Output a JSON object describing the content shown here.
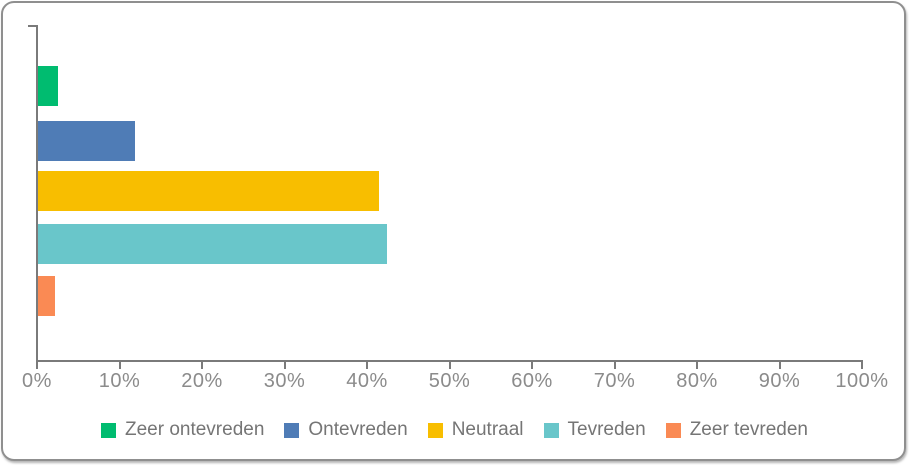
{
  "chart_data": {
    "type": "bar",
    "orientation": "horizontal",
    "title": "",
    "xlabel": "",
    "ylabel": "",
    "categories": [
      "Zeer ontevreden",
      "Ontevreden",
      "Neutraal",
      "Tevreden",
      "Zeer tevreden"
    ],
    "values": [
      2.4,
      11.8,
      41.3,
      42.3,
      2.1
    ],
    "unit": "%",
    "colors": [
      "#00bc70",
      "#4f7cb6",
      "#f8be00",
      "#69c6ca",
      "#fa8a54"
    ],
    "xlim": [
      0,
      100
    ],
    "x_tick_step": 10,
    "x_tick_labels": [
      "0%",
      "10%",
      "20%",
      "30%",
      "40%",
      "50%",
      "60%",
      "70%",
      "80%",
      "90%",
      "100%"
    ],
    "grid": false,
    "legend_position": "bottom",
    "legend": [
      {
        "label": "Zeer ontevreden",
        "color": "#00bc70"
      },
      {
        "label": "Ontevreden",
        "color": "#4f7cb6"
      },
      {
        "label": "Neutraal",
        "color": "#f8be00"
      },
      {
        "label": "Tevreden",
        "color": "#69c6ca"
      },
      {
        "label": "Zeer tevreden",
        "color": "#fa8a54"
      }
    ]
  },
  "styles": {
    "axis_color": "#7a7a7a",
    "tick_label_color": "#8b8b8b",
    "legend_text_color": "#757575",
    "border_color": "#8f8f8f",
    "background_color": "#ffffff"
  }
}
